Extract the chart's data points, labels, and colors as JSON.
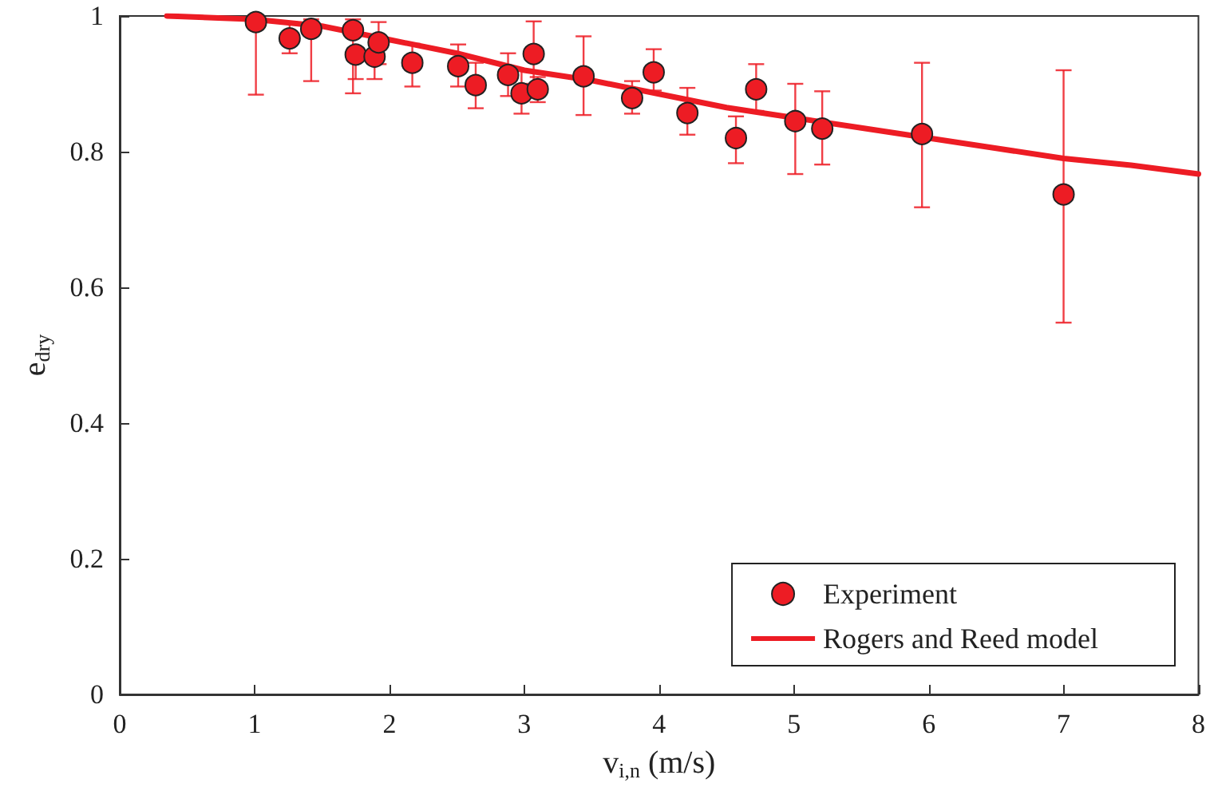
{
  "chart_data": {
    "type": "scatter",
    "xlabel": "v$_{i,n}$ (m/s)",
    "ylabel": "e$_{dry}$",
    "xlim": [
      0,
      8
    ],
    "xticks": [
      0,
      1,
      2,
      3,
      4,
      5,
      6,
      7,
      8
    ],
    "ylim": [
      0,
      1
    ],
    "yticks": [
      0,
      0.2,
      0.4,
      0.6,
      0.8,
      1
    ],
    "grid": false,
    "legend": "bottom right",
    "marker": "circle",
    "series": [
      {
        "name": "Experiment",
        "color": "#ed1c24",
        "x": [
          1.01,
          1.26,
          1.42,
          1.73,
          1.75,
          1.89,
          1.92,
          2.17,
          2.51,
          2.64,
          2.88,
          2.98,
          3.07,
          3.1,
          3.44,
          3.8,
          3.96,
          4.21,
          4.57,
          4.72,
          5.01,
          5.21,
          5.95,
          7.0
        ],
        "values": [
          0.991,
          0.967,
          0.981,
          0.979,
          0.943,
          0.94,
          0.961,
          0.931,
          0.926,
          0.898,
          0.913,
          0.886,
          0.944,
          0.892,
          0.911,
          0.879,
          0.917,
          0.857,
          0.82,
          0.892,
          0.845,
          0.834,
          0.826,
          0.737
        ],
        "errors": [
          [
            0.884,
            1.0
          ],
          [
            0.945,
            0.991
          ],
          [
            0.904,
            0.995
          ],
          [
            0.886,
            0.995
          ],
          [
            0.907,
            0.943
          ],
          [
            0.907,
            0.97
          ],
          [
            0.929,
            0.991
          ],
          [
            0.896,
            0.959
          ],
          [
            0.896,
            0.958
          ],
          [
            0.864,
            0.931
          ],
          [
            0.882,
            0.945
          ],
          [
            0.856,
            0.92
          ],
          [
            0.9,
            0.992
          ],
          [
            0.873,
            0.91
          ],
          [
            0.854,
            0.97
          ],
          [
            0.856,
            0.904
          ],
          [
            0.89,
            0.951
          ],
          [
            0.825,
            0.894
          ],
          [
            0.783,
            0.852
          ],
          [
            0.86,
            0.929
          ],
          [
            0.767,
            0.9
          ],
          [
            0.781,
            0.889
          ],
          [
            0.718,
            0.931
          ],
          [
            0.548,
            0.92
          ]
        ]
      },
      {
        "name": "Rogers and Reed model",
        "type": "line",
        "color": "#ed1c24",
        "marker": "none",
        "line_style": "solid",
        "x": [
          0.35,
          1.0,
          1.5,
          2.0,
          2.5,
          3.0,
          3.5,
          4.0,
          4.5,
          5.0,
          5.5,
          6.0,
          6.5,
          7.0,
          7.5,
          8.0
        ],
        "values": [
          1.0,
          0.995,
          0.985,
          0.965,
          0.945,
          0.92,
          0.905,
          0.885,
          0.865,
          0.85,
          0.835,
          0.82,
          0.805,
          0.79,
          0.78,
          0.767
        ]
      }
    ]
  }
}
